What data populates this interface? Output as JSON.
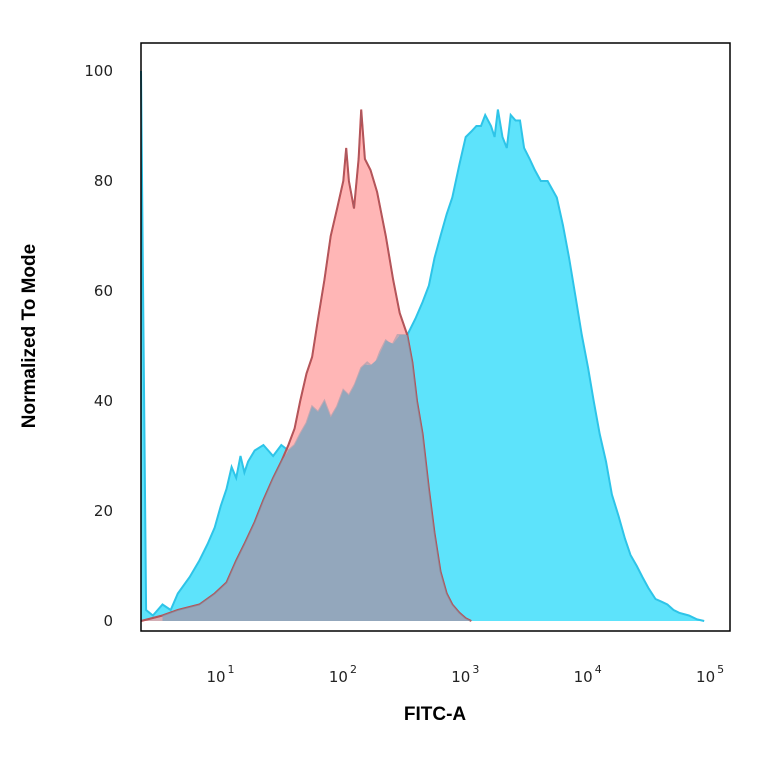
{
  "chart_data": {
    "type": "area",
    "xlabel": "FITC-A",
    "ylabel": "Normalized To Mode",
    "x_scale": "log",
    "xlim": [
      2,
      130000
    ],
    "ylim": [
      0,
      103
    ],
    "grid": false,
    "x_ticks": [
      {
        "base": "10",
        "exp": "1",
        "value": 10
      },
      {
        "base": "10",
        "exp": "2",
        "value": 100
      },
      {
        "base": "10",
        "exp": "3",
        "value": 1000
      },
      {
        "base": "10",
        "exp": "4",
        "value": 10000
      },
      {
        "base": "10",
        "exp": "5",
        "value": 100000
      }
    ],
    "y_ticks": [
      "0",
      "20",
      "40",
      "60",
      "80",
      "100"
    ],
    "y_tick_values": [
      0,
      20,
      40,
      60,
      80,
      100
    ],
    "series": [
      {
        "color": "#2ec4e8",
        "fill": "#5de3fb",
        "points": [
          [
            2,
            100
          ],
          [
            2.2,
            2
          ],
          [
            2.5,
            1
          ],
          [
            3,
            3
          ],
          [
            3.5,
            2
          ],
          [
            4,
            5
          ],
          [
            5,
            8
          ],
          [
            6,
            11
          ],
          [
            7,
            14
          ],
          [
            8,
            17
          ],
          [
            9,
            21
          ],
          [
            10,
            24
          ],
          [
            11,
            28
          ],
          [
            12,
            26
          ],
          [
            13,
            30
          ],
          [
            14,
            27
          ],
          [
            15,
            29
          ],
          [
            17,
            31
          ],
          [
            20,
            32
          ],
          [
            24,
            30
          ],
          [
            28,
            32
          ],
          [
            32,
            31
          ],
          [
            36,
            32
          ],
          [
            40,
            34
          ],
          [
            45,
            36
          ],
          [
            50,
            39
          ],
          [
            56,
            38
          ],
          [
            63,
            40
          ],
          [
            71,
            37
          ],
          [
            80,
            39
          ],
          [
            90,
            42
          ],
          [
            100,
            41
          ],
          [
            112,
            43
          ],
          [
            126,
            46
          ],
          [
            141,
            47
          ],
          [
            160,
            46
          ],
          [
            180,
            49
          ],
          [
            200,
            51
          ],
          [
            225,
            50
          ],
          [
            250,
            52
          ],
          [
            300,
            52
          ],
          [
            350,
            55
          ],
          [
            400,
            58
          ],
          [
            450,
            61
          ],
          [
            500,
            66
          ],
          [
            560,
            70
          ],
          [
            630,
            74
          ],
          [
            700,
            77
          ],
          [
            800,
            83
          ],
          [
            900,
            88
          ],
          [
            1000,
            89
          ],
          [
            1100,
            90
          ],
          [
            1200,
            90
          ],
          [
            1300,
            92
          ],
          [
            1450,
            90
          ],
          [
            1550,
            88
          ],
          [
            1650,
            93
          ],
          [
            1800,
            88
          ],
          [
            1950,
            86
          ],
          [
            2100,
            92
          ],
          [
            2300,
            91
          ],
          [
            2500,
            91
          ],
          [
            2700,
            86
          ],
          [
            3000,
            84
          ],
          [
            3300,
            82
          ],
          [
            3700,
            80
          ],
          [
            4200,
            80
          ],
          [
            5000,
            77
          ],
          [
            5600,
            72
          ],
          [
            6300,
            66
          ],
          [
            7100,
            59
          ],
          [
            8000,
            52
          ],
          [
            9000,
            46
          ],
          [
            10000,
            40
          ],
          [
            11200,
            34
          ],
          [
            12600,
            29
          ],
          [
            14100,
            23
          ],
          [
            16000,
            19
          ],
          [
            18000,
            15
          ],
          [
            20000,
            12
          ],
          [
            22500,
            10
          ],
          [
            25000,
            8
          ],
          [
            28000,
            6
          ],
          [
            32000,
            4
          ],
          [
            36000,
            3.5
          ],
          [
            40000,
            3
          ],
          [
            45000,
            2
          ],
          [
            50000,
            1.5
          ],
          [
            60000,
            1
          ],
          [
            70000,
            0.3
          ],
          [
            80000,
            0
          ]
        ]
      },
      {
        "color": "#d93a3a",
        "fill": "#ff9a9a",
        "points": [
          [
            2,
            0
          ],
          [
            3,
            1
          ],
          [
            4,
            2
          ],
          [
            6,
            3
          ],
          [
            8,
            5
          ],
          [
            10,
            7
          ],
          [
            12,
            11
          ],
          [
            14,
            14
          ],
          [
            17,
            18
          ],
          [
            20,
            22
          ],
          [
            24,
            26
          ],
          [
            28,
            29
          ],
          [
            32,
            32
          ],
          [
            36,
            35
          ],
          [
            40,
            40
          ],
          [
            45,
            45
          ],
          [
            50,
            48
          ],
          [
            56,
            55
          ],
          [
            63,
            62
          ],
          [
            71,
            70
          ],
          [
            80,
            75
          ],
          [
            90,
            80
          ],
          [
            95,
            86
          ],
          [
            100,
            80
          ],
          [
            110,
            75
          ],
          [
            120,
            84
          ],
          [
            126,
            93
          ],
          [
            135,
            84
          ],
          [
            150,
            82
          ],
          [
            170,
            78
          ],
          [
            200,
            70
          ],
          [
            230,
            62
          ],
          [
            260,
            56
          ],
          [
            300,
            52
          ],
          [
            330,
            47
          ],
          [
            360,
            40
          ],
          [
            400,
            34
          ],
          [
            450,
            24
          ],
          [
            500,
            16
          ],
          [
            560,
            9
          ],
          [
            630,
            5
          ],
          [
            700,
            3
          ],
          [
            800,
            1.5
          ],
          [
            900,
            0.5
          ],
          [
            1000,
            0
          ]
        ]
      }
    ]
  }
}
